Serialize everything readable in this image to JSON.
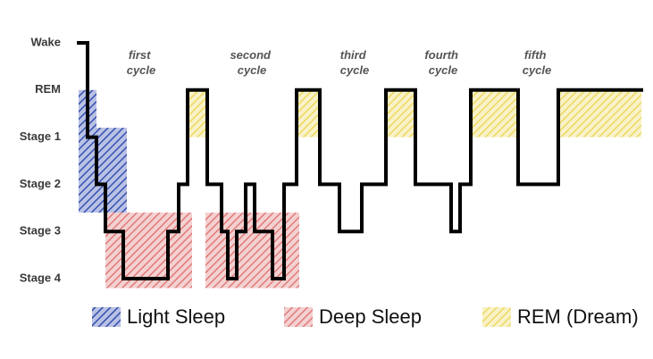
{
  "chart_data": {
    "type": "line",
    "color": "#000000",
    "x": [
      0,
      10,
      10,
      20,
      20,
      30,
      30,
      50,
      50,
      100,
      100,
      112,
      112,
      122,
      122,
      144,
      144,
      160,
      160,
      167,
      167,
      177,
      177,
      187,
      187,
      197,
      197,
      217,
      217,
      230,
      230,
      244,
      244,
      270,
      270,
      292,
      292,
      317,
      317,
      344,
      344,
      377,
      377,
      417,
      417,
      427,
      427,
      439,
      439,
      492,
      492,
      537,
      537,
      630
    ],
    "values": [
      0,
      0,
      2,
      2,
      3,
      3,
      4,
      4,
      5,
      5,
      4,
      4,
      3,
      3,
      1,
      1,
      3,
      3,
      4,
      4,
      5,
      5,
      4,
      4,
      3,
      3,
      4,
      4,
      5,
      5,
      3,
      3,
      1,
      1,
      3,
      3,
      4,
      4,
      3,
      3,
      1,
      1,
      3,
      3,
      4,
      4,
      3,
      3,
      1,
      1,
      3,
      3,
      1,
      1
    ],
    "xlim": [
      0,
      630
    ],
    "ylim": [
      0,
      5
    ],
    "yticks": [
      {
        "value": 0,
        "label": "Wake"
      },
      {
        "value": 1,
        "label": "REM"
      },
      {
        "value": 2,
        "label": "Stage 1"
      },
      {
        "value": 3,
        "label": "Stage 2"
      },
      {
        "value": 4,
        "label": "Stage 3"
      },
      {
        "value": 5,
        "label": "Stage 4"
      }
    ],
    "annotations": [
      "first cycle",
      "second cycle",
      "third cycle",
      "fourth cycle",
      "fifth cycle"
    ],
    "series": [
      {
        "name": "Light Sleep",
        "color": "#3550b0",
        "regions": [
          [
            0,
            20,
            1,
            3.6
          ],
          [
            20,
            54,
            1.8,
            3.6
          ]
        ]
      },
      {
        "name": "Deep Sleep",
        "color": "#e07a7a",
        "regions": [
          [
            30,
            127,
            3.6,
            5.2
          ],
          [
            142,
            247,
            3.6,
            5.2
          ]
        ]
      },
      {
        "name": "REM (Dream)",
        "color": "#ecd860",
        "regions": [
          [
            122,
            144,
            1,
            2
          ],
          [
            244,
            270,
            1,
            2
          ],
          [
            344,
            377,
            1,
            2
          ],
          [
            439,
            492,
            1,
            2
          ],
          [
            537,
            630,
            1,
            2
          ]
        ]
      }
    ]
  }
}
